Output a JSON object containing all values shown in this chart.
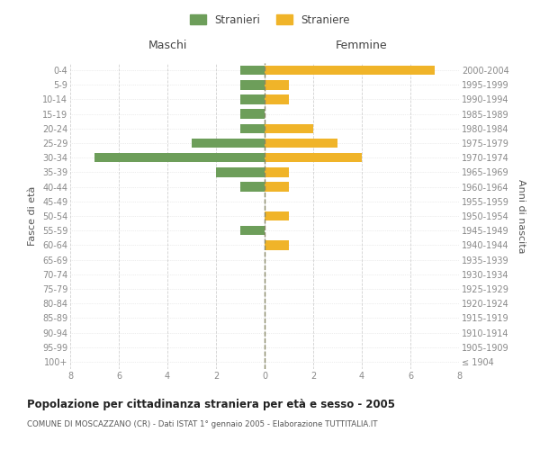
{
  "age_groups": [
    "100+",
    "95-99",
    "90-94",
    "85-89",
    "80-84",
    "75-79",
    "70-74",
    "65-69",
    "60-64",
    "55-59",
    "50-54",
    "45-49",
    "40-44",
    "35-39",
    "30-34",
    "25-29",
    "20-24",
    "15-19",
    "10-14",
    "5-9",
    "0-4"
  ],
  "birth_years": [
    "≤ 1904",
    "1905-1909",
    "1910-1914",
    "1915-1919",
    "1920-1924",
    "1925-1929",
    "1930-1934",
    "1935-1939",
    "1940-1944",
    "1945-1949",
    "1950-1954",
    "1955-1959",
    "1960-1964",
    "1965-1969",
    "1970-1974",
    "1975-1979",
    "1980-1984",
    "1985-1989",
    "1990-1994",
    "1995-1999",
    "2000-2004"
  ],
  "males": [
    0,
    0,
    0,
    0,
    0,
    0,
    0,
    0,
    0,
    1,
    0,
    0,
    1,
    2,
    7,
    3,
    1,
    1,
    1,
    1,
    1
  ],
  "females": [
    0,
    0,
    0,
    0,
    0,
    0,
    0,
    0,
    1,
    0,
    1,
    0,
    1,
    1,
    4,
    3,
    2,
    0,
    1,
    1,
    7
  ],
  "male_color": "#6d9e5a",
  "female_color": "#f0b429",
  "title": "Popolazione per cittadinanza straniera per età e sesso - 2005",
  "subtitle": "COMUNE DI MOSCAZZANO (CR) - Dati ISTAT 1° gennaio 2005 - Elaborazione TUTTITALIA.IT",
  "xlabel_left": "Maschi",
  "xlabel_right": "Femmine",
  "ylabel_left": "Fasce di età",
  "ylabel_right": "Anni di nascita",
  "legend_male": "Stranieri",
  "legend_female": "Straniere",
  "xlim": 8,
  "background_color": "#ffffff",
  "grid_color": "#cccccc",
  "axis_label_color": "#555555",
  "tick_color": "#888888"
}
